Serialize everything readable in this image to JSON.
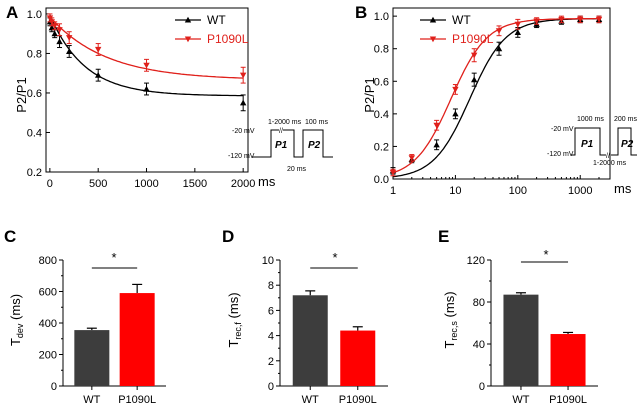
{
  "colors": {
    "wt": "#000000",
    "mut": "#e0201b",
    "bar_wt": "#3d3d3d",
    "bar_mut": "#ff0000"
  },
  "chart_data": [
    {
      "panel": "A",
      "type": "scatter",
      "title": "",
      "xlabel": "",
      "x_unit": "ms",
      "ylabel": "P2/P1",
      "xlim": [
        -40,
        2050
      ],
      "ylim": [
        0.2,
        1.03
      ],
      "xticks": [
        0,
        500,
        1000,
        1500,
        2000
      ],
      "yticks": [
        0.2,
        0.4,
        0.6,
        0.8,
        1.0
      ],
      "xticklabels": [
        "0",
        "500",
        "1000",
        "1500",
        "2000"
      ],
      "yticklabels": [
        "0.2",
        "0.4",
        "0.6",
        "0.8",
        "1.0"
      ],
      "legend_position": "top-right",
      "series": [
        {
          "name": "WT",
          "marker": "triangle-up",
          "color": "#000000",
          "points": [
            [
              1,
              0.96
            ],
            [
              20,
              0.93
            ],
            [
              50,
              0.9
            ],
            [
              100,
              0.86
            ],
            [
              200,
              0.81
            ],
            [
              500,
              0.69
            ],
            [
              1000,
              0.62
            ],
            [
              2000,
              0.55
            ]
          ],
          "errors": [
            0.02,
            0.02,
            0.02,
            0.03,
            0.03,
            0.03,
            0.03,
            0.04
          ],
          "fit": {
            "amplitude": 0.41,
            "tau": 360,
            "plateau": 0.585
          }
        },
        {
          "name": "P1090L",
          "marker": "triangle-down",
          "color": "#e0201b",
          "points": [
            [
              1,
              0.98
            ],
            [
              20,
              0.96
            ],
            [
              50,
              0.94
            ],
            [
              100,
              0.92
            ],
            [
              200,
              0.88
            ],
            [
              500,
              0.82
            ],
            [
              1000,
              0.74
            ],
            [
              2000,
              0.69
            ]
          ],
          "errors": [
            0.02,
            0.02,
            0.02,
            0.03,
            0.03,
            0.03,
            0.03,
            0.04
          ],
          "fit": {
            "amplitude": 0.32,
            "tau": 580,
            "plateau": 0.665
          }
        }
      ],
      "protocol": {
        "v_hold": "-120 mV",
        "v_test": "-20 mV",
        "interval": "1-2000 ms",
        "p2_duration": "100 ms",
        "gap": "20 ms",
        "p1": "P1",
        "p2": "P2"
      }
    },
    {
      "panel": "B",
      "type": "scatter",
      "title": "",
      "xlabel": "",
      "x_unit": "ms",
      "x_scale": "log",
      "ylabel": "P2/P1",
      "xlim": [
        1,
        3000
      ],
      "ylim": [
        0.0,
        1.05
      ],
      "xticks": [
        1,
        10,
        100,
        1000
      ],
      "yticks": [
        0.0,
        0.2,
        0.4,
        0.6,
        0.8,
        1.0
      ],
      "xticklabels": [
        "1",
        "10",
        "100",
        "1000"
      ],
      "yticklabels": [
        "0.0",
        "0.2",
        "0.4",
        "0.6",
        "0.8",
        "1.0"
      ],
      "legend_position": "top-left",
      "series": [
        {
          "name": "WT",
          "marker": "triangle-up",
          "color": "#000000",
          "points": [
            [
              1,
              0.05
            ],
            [
              2,
              0.12
            ],
            [
              5,
              0.21
            ],
            [
              10,
              0.4
            ],
            [
              20,
              0.61
            ],
            [
              50,
              0.8
            ],
            [
              100,
              0.9
            ],
            [
              200,
              0.95
            ],
            [
              500,
              0.97
            ],
            [
              1000,
              0.98
            ],
            [
              2000,
              0.98
            ]
          ],
          "errors": [
            0.02,
            0.02,
            0.03,
            0.03,
            0.04,
            0.04,
            0.03,
            0.02,
            0.02,
            0.02,
            0.02
          ],
          "fit": {
            "x50": 17,
            "n": 1.5
          }
        },
        {
          "name": "P1090L",
          "marker": "triangle-down",
          "color": "#e0201b",
          "points": [
            [
              1,
              0.04
            ],
            [
              2,
              0.13
            ],
            [
              5,
              0.33
            ],
            [
              10,
              0.55
            ],
            [
              20,
              0.76
            ],
            [
              50,
              0.91
            ],
            [
              100,
              0.95
            ],
            [
              200,
              0.97
            ],
            [
              500,
              0.98
            ],
            [
              1000,
              0.98
            ],
            [
              2000,
              0.98
            ]
          ],
          "errors": [
            0.02,
            0.02,
            0.03,
            0.03,
            0.04,
            0.03,
            0.03,
            0.02,
            0.02,
            0.02,
            0.02
          ],
          "fit": {
            "x50": 8.5,
            "n": 1.5
          }
        }
      ],
      "protocol": {
        "v_hold": "-120 mV",
        "v_test": "-20 mV",
        "p1_duration": "1000 ms",
        "p2_duration": "200 ms",
        "interval": "1-2000 ms",
        "p1": "P1",
        "p2": "P2"
      }
    },
    {
      "panel": "C",
      "type": "bar",
      "title": "",
      "categories": [
        "WT",
        "P1090L"
      ],
      "values": [
        355,
        590
      ],
      "errors": [
        12,
        55
      ],
      "ylabel_main": "T",
      "ylabel_sub": "dev",
      "ylabel_unit": " (ms)",
      "ylim": [
        0,
        800
      ],
      "yticks": [
        0,
        200,
        400,
        600,
        800
      ],
      "yticklabels": [
        "0",
        "200",
        "400",
        "600",
        "800"
      ],
      "significance": "*"
    },
    {
      "panel": "D",
      "type": "bar",
      "title": "",
      "categories": [
        "WT",
        "P1090L"
      ],
      "values": [
        7.2,
        4.4
      ],
      "errors": [
        0.35,
        0.3
      ],
      "ylabel_main": "T",
      "ylabel_sub": "rec,f",
      "ylabel_unit": " (ms)",
      "ylim": [
        0,
        10
      ],
      "yticks": [
        0,
        2,
        4,
        6,
        8,
        10
      ],
      "yticklabels": [
        "0",
        "2",
        "4",
        "6",
        "8",
        "10"
      ],
      "significance": "*"
    },
    {
      "panel": "E",
      "type": "bar",
      "title": "",
      "categories": [
        "WT",
        "P1090L"
      ],
      "values": [
        87,
        49.5
      ],
      "errors": [
        1.8,
        1.5
      ],
      "ylabel_main": "T",
      "ylabel_sub": "rec,s",
      "ylabel_unit": " (ms)",
      "ylim": [
        0,
        120
      ],
      "yticks": [
        0,
        40,
        80,
        120
      ],
      "yticklabels": [
        "0",
        "40",
        "80",
        "120"
      ],
      "significance": "*"
    }
  ]
}
